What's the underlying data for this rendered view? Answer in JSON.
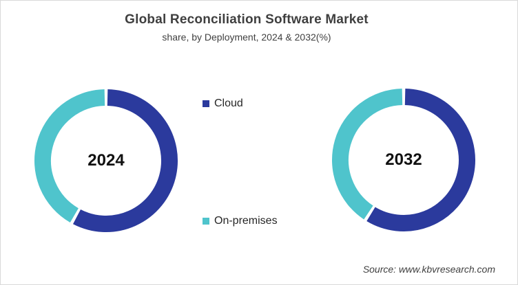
{
  "header": {
    "title": "Global Reconciliation Software Market",
    "subtitle": "share, by Deployment, 2024 & 2032(%)"
  },
  "legend": {
    "items": [
      {
        "label": "Cloud",
        "color": "#2B3A9D"
      },
      {
        "label": "On-premises",
        "color": "#4FC4CC"
      }
    ]
  },
  "chart_data": [
    {
      "type": "pie",
      "subtype": "donut",
      "center_label": "2024",
      "categories": [
        "Cloud",
        "On-premises"
      ],
      "values": [
        58,
        42
      ],
      "colors": [
        "#2B3A9D",
        "#4FC4CC"
      ],
      "units": "%",
      "start_angle_deg": 0,
      "direction": "clockwise",
      "legend_position": "center-between-charts"
    },
    {
      "type": "pie",
      "subtype": "donut",
      "center_label": "2032",
      "categories": [
        "Cloud",
        "On-premises"
      ],
      "values": [
        59,
        41
      ],
      "colors": [
        "#2B3A9D",
        "#4FC4CC"
      ],
      "units": "%",
      "start_angle_deg": 0,
      "direction": "clockwise",
      "legend_position": "center-between-charts"
    }
  ],
  "source": {
    "text": "Source: www.kbvresearch.com"
  },
  "colors": {
    "cloud": "#2B3A9D",
    "on_premises": "#4FC4CC",
    "border": "#D9D9D9",
    "heading_text": "#3F3F3F",
    "background": "#FFFFFF"
  }
}
